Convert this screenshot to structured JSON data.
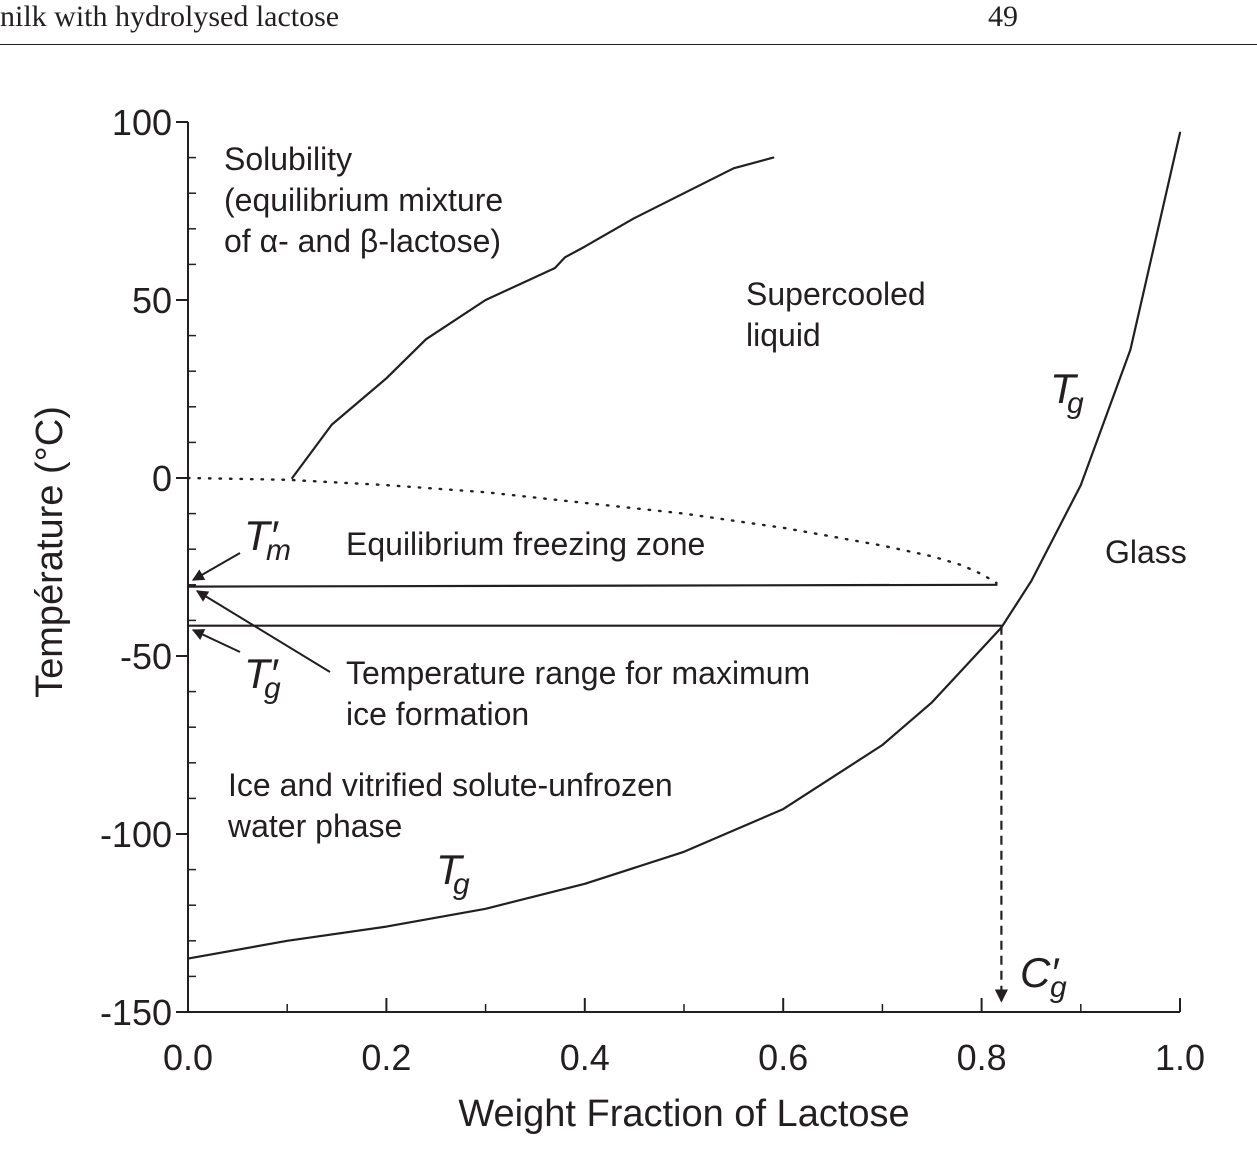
{
  "page": {
    "running_title": "nilk with hydrolysed lactose",
    "page_number": "49"
  },
  "chart_data": {
    "type": "line",
    "xlabel": "Weight Fraction of Lactose",
    "ylabel": "Température (°C)",
    "xlim": [
      0.0,
      1.0
    ],
    "ylim": [
      -150,
      100
    ],
    "x_ticks": [
      "0.0",
      "0.2",
      "0.4",
      "0.6",
      "0.8",
      "1.0"
    ],
    "y_ticks": [
      "100",
      "50",
      "0",
      "-50",
      "-100",
      "-150"
    ],
    "grid": false,
    "series": [
      {
        "key": "solubility",
        "style": "solid",
        "points": [
          [
            0.105,
            0
          ],
          [
            0.145,
            15
          ],
          [
            0.2,
            28
          ],
          [
            0.24,
            39
          ],
          [
            0.3,
            50
          ],
          [
            0.37,
            59
          ],
          [
            0.38,
            62
          ],
          [
            0.4,
            65
          ],
          [
            0.45,
            73
          ],
          [
            0.5,
            80
          ],
          [
            0.55,
            87
          ],
          [
            0.59,
            90
          ]
        ]
      },
      {
        "key": "freezing-curve",
        "style": "dotted",
        "points": [
          [
            0.0,
            0
          ],
          [
            0.1,
            -0.5
          ],
          [
            0.2,
            -2
          ],
          [
            0.3,
            -4
          ],
          [
            0.4,
            -7
          ],
          [
            0.5,
            -10
          ],
          [
            0.6,
            -14
          ],
          [
            0.7,
            -19
          ],
          [
            0.75,
            -22
          ],
          [
            0.78,
            -24.5
          ],
          [
            0.8,
            -27
          ],
          [
            0.815,
            -29.5
          ]
        ]
      },
      {
        "key": "tg-curve",
        "style": "solid",
        "points": [
          [
            0.0,
            -135
          ],
          [
            0.1,
            -130
          ],
          [
            0.2,
            -126
          ],
          [
            0.3,
            -121
          ],
          [
            0.4,
            -114
          ],
          [
            0.5,
            -105
          ],
          [
            0.6,
            -93
          ],
          [
            0.7,
            -75
          ],
          [
            0.75,
            -63
          ],
          [
            0.8,
            -48
          ],
          [
            0.82,
            -42
          ],
          [
            0.85,
            -29
          ],
          [
            0.9,
            -2
          ],
          [
            0.95,
            36
          ],
          [
            1.0,
            97
          ]
        ]
      },
      {
        "key": "tm-prime-line",
        "style": "solid",
        "points": [
          [
            0.0,
            -30.5
          ],
          [
            0.815,
            -30
          ]
        ]
      },
      {
        "key": "tg-prime-line",
        "style": "solid",
        "points": [
          [
            0.0,
            -41.5
          ],
          [
            0.82,
            -41.5
          ]
        ]
      },
      {
        "key": "cg-prime-drop",
        "style": "dashed",
        "points": [
          [
            0.82,
            -41.5
          ],
          [
            0.82,
            -147
          ]
        ]
      }
    ],
    "annotations": {
      "solubility": [
        "Solubility",
        "(equilibrium mixture",
        "of α- and β-lactose)"
      ],
      "supercooled": [
        "Supercooled",
        "liquid"
      ],
      "glass": "Glass",
      "freezing_zone": "Equilibrium freezing zone",
      "temp_range": [
        "Temperature range for maximum",
        "ice formation"
      ],
      "ice": [
        "Ice and vitrified solute-unfrozen",
        "water phase"
      ],
      "tg_symbol": {
        "main": "T",
        "sub": "g"
      },
      "tm_prime_symbol": {
        "main": "T′",
        "sub": "m"
      },
      "tg_prime_symbol": {
        "main": "T′",
        "sub": "g"
      },
      "cg_prime_symbol": {
        "main": "C′",
        "sub": "g"
      }
    },
    "colors": {
      "ink": "#231f20"
    }
  }
}
